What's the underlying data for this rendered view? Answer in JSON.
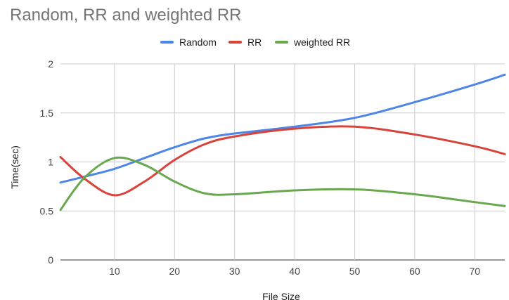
{
  "chart_data": {
    "type": "line",
    "title": "Random, RR and weighted RR",
    "xlabel": "File Size",
    "ylabel": "Time(sec)",
    "xlim": [
      1,
      75
    ],
    "ylim": [
      0,
      2
    ],
    "x_ticks": [
      "10",
      "20",
      "30",
      "40",
      "50",
      "60",
      "70"
    ],
    "y_ticks": [
      "0",
      "0.5",
      "1",
      "1.5",
      "2"
    ],
    "grid": true,
    "legend_position": "top",
    "x": [
      1,
      5,
      10,
      15,
      20,
      25,
      30,
      40,
      50,
      60,
      70,
      75
    ],
    "series": [
      {
        "name": "Random",
        "color": "#4e86e8",
        "values": [
          0.79,
          0.85,
          0.93,
          1.04,
          1.15,
          1.24,
          1.29,
          1.36,
          1.45,
          1.61,
          1.79,
          1.89
        ]
      },
      {
        "name": "RR",
        "color": "#d9433b",
        "values": [
          1.05,
          0.83,
          0.66,
          0.8,
          1.02,
          1.18,
          1.26,
          1.34,
          1.36,
          1.28,
          1.16,
          1.08
        ]
      },
      {
        "name": "weighted RR",
        "color": "#6aa84f",
        "values": [
          0.51,
          0.84,
          1.04,
          0.97,
          0.8,
          0.68,
          0.67,
          0.71,
          0.72,
          0.67,
          0.59,
          0.55
        ]
      }
    ]
  }
}
